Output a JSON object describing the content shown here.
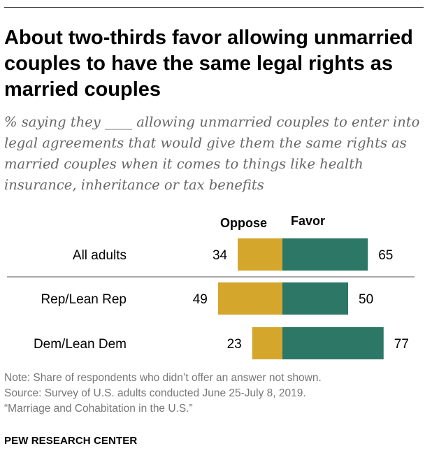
{
  "title": "About two-thirds favor allowing unmarried couples to have the same legal rights as married couples",
  "subtitle": "% saying they ____ allowing unmarried couples to enter into legal agreements that would give them the same rights as married couples when it comes to things like health insurance, inheritance or tax benefits",
  "colors": {
    "oppose": "#d4a72c",
    "favor": "#2c7766",
    "text": "#000000",
    "note": "#777777"
  },
  "chart_data": {
    "type": "bar",
    "orientation": "horizontal-diverging",
    "categories": [
      "All adults",
      "Rep/Lean Rep",
      "Dem/Lean Dem"
    ],
    "series": [
      {
        "name": "Oppose",
        "values": [
          34,
          49,
          23
        ]
      },
      {
        "name": "Favor",
        "values": [
          65,
          50,
          77
        ]
      }
    ],
    "legend_placement": "top",
    "grid": false
  },
  "notes": [
    "Note: Share of respondents who didn’t offer an answer not shown.",
    "Source: Survey of U.S. adults conducted June 25-July 8, 2019.",
    "“Marriage and Cohabitation in the U.S.”"
  ],
  "brand": "PEW RESEARCH CENTER"
}
